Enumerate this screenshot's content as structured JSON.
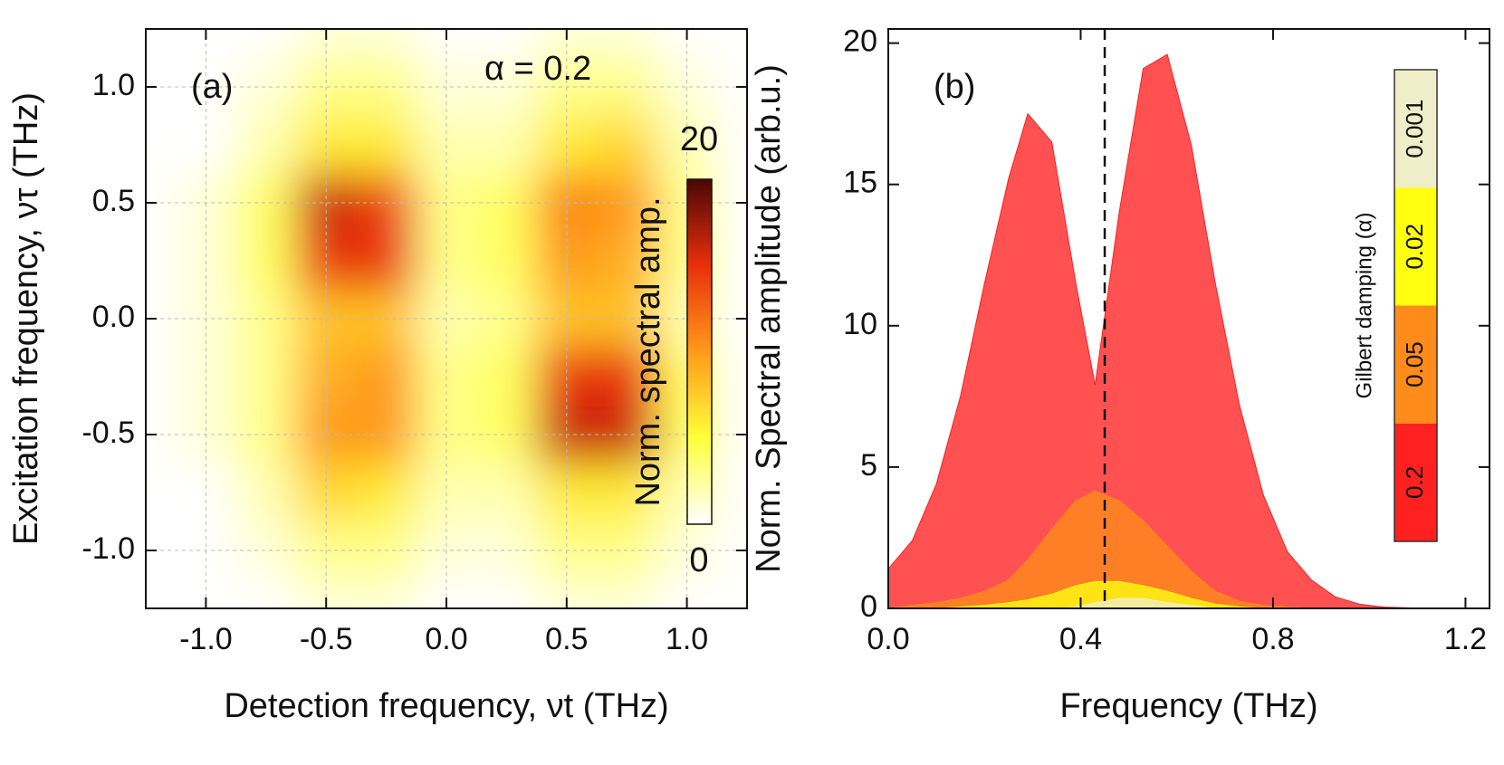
{
  "chart_data": [
    {
      "type": "heatmap",
      "panel_label": "(a)",
      "annotation": "α = 0.2",
      "xlabel": "Detection frequency, νt (THz)",
      "ylabel": "Excitation frequency, ντ (THz)",
      "colorbar_label": "Norm. spectral amp.",
      "zlim": [
        0,
        20
      ],
      "zticks": [
        0,
        20
      ],
      "colorscale": [
        "#ffffff",
        "#ffff3a",
        "#ff9a1a",
        "#e8300c",
        "#4a0606"
      ],
      "x": [
        -1.25,
        -1.0,
        -0.75,
        -0.5,
        -0.25,
        0,
        0.25,
        0.5,
        0.75,
        1.0,
        1.25
      ],
      "y": [
        1.25,
        1.0,
        0.75,
        0.5,
        0.25,
        0,
        -0.25,
        -0.5,
        -0.75,
        -1.0,
        -1.25
      ],
      "z": [
        [
          0,
          0,
          0,
          1,
          1,
          0,
          0,
          1,
          1,
          0,
          0
        ],
        [
          0,
          0,
          1,
          3,
          3,
          1,
          1,
          3,
          3,
          1,
          0
        ],
        [
          0,
          0,
          2,
          6,
          6,
          2,
          2,
          6,
          7,
          2,
          0
        ],
        [
          0,
          1,
          4,
          16,
          14,
          3,
          4,
          11,
          10,
          3,
          0
        ],
        [
          0,
          1,
          4,
          15,
          15,
          3,
          4,
          10,
          9,
          3,
          0
        ],
        [
          0,
          1,
          3,
          8,
          8,
          2,
          3,
          8,
          8,
          2,
          0
        ],
        [
          0,
          1,
          3,
          9,
          10,
          3,
          4,
          15,
          15,
          4,
          0
        ],
        [
          0,
          1,
          3,
          10,
          10,
          3,
          4,
          16,
          16,
          4,
          0
        ],
        [
          0,
          0,
          2,
          7,
          6,
          2,
          2,
          6,
          6,
          2,
          0
        ],
        [
          0,
          0,
          1,
          3,
          3,
          1,
          1,
          3,
          3,
          1,
          0
        ],
        [
          0,
          0,
          0,
          1,
          1,
          0,
          0,
          1,
          1,
          0,
          0
        ]
      ],
      "xlim": [
        -1.25,
        1.25
      ],
      "ylim": [
        -1.25,
        1.25
      ],
      "xticks": [
        {
          "value": -1.0,
          "label": "-1.0"
        },
        {
          "value": -0.5,
          "label": "-0.5"
        },
        {
          "value": 0,
          "label": "0.0"
        },
        {
          "value": 0.5,
          "label": "0.5"
        },
        {
          "value": 1.0,
          "label": "1.0"
        }
      ],
      "yticks": [
        {
          "value": -1.0,
          "label": "-1.0"
        },
        {
          "value": -0.5,
          "label": "-0.5"
        },
        {
          "value": 0,
          "label": "0.0"
        },
        {
          "value": 0.5,
          "label": "0.5"
        },
        {
          "value": 1.0,
          "label": "1.0"
        }
      ],
      "grid": true
    },
    {
      "type": "area",
      "panel_label": "(b)",
      "xlabel": "Frequency (THz)",
      "ylabel": "Norm. Spectral amplitude (arb.u.)",
      "legend_title": "Gilbert damping (α)",
      "vline": 0.45,
      "x": [
        0,
        0.05,
        0.1,
        0.15,
        0.2,
        0.25,
        0.29,
        0.34,
        0.39,
        0.43,
        0.48,
        0.53,
        0.58,
        0.63,
        0.68,
        0.73,
        0.78,
        0.83,
        0.88,
        0.93,
        0.98,
        1.03,
        1.08,
        1.13,
        1.18,
        1.22
      ],
      "series": [
        {
          "name": "0.2",
          "color": "#ff2020",
          "values": [
            1.4,
            2.4,
            4.4,
            7.5,
            11.5,
            15.2,
            17.5,
            16.5,
            11.5,
            7.9,
            14,
            19.1,
            19.6,
            16.4,
            11.5,
            7.2,
            4,
            2,
            1,
            0.4,
            0.15,
            0.05,
            0.02,
            0,
            0,
            0
          ]
        },
        {
          "name": "0.05",
          "color": "#ff8c1a",
          "values": [
            0,
            0.1,
            0.2,
            0.35,
            0.6,
            1.0,
            1.7,
            2.8,
            3.8,
            4.15,
            3.8,
            3.1,
            2.2,
            1.3,
            0.6,
            0.25,
            0.1,
            0.05,
            0,
            0,
            0,
            0,
            0,
            0,
            0,
            0
          ]
        },
        {
          "name": "0.02",
          "color": "#ffff10",
          "values": [
            0,
            0,
            0,
            0.05,
            0.1,
            0.2,
            0.3,
            0.5,
            0.8,
            0.95,
            0.95,
            0.8,
            0.6,
            0.35,
            0.15,
            0.05,
            0,
            0,
            0,
            0,
            0,
            0,
            0,
            0,
            0,
            0
          ]
        },
        {
          "name": "0.001",
          "color": "#f0eec8",
          "values": [
            0,
            0,
            0,
            0,
            0,
            0,
            0,
            0,
            0.05,
            0.2,
            0.35,
            0.35,
            0.2,
            0.1,
            0,
            0,
            0,
            0,
            0,
            0,
            0,
            0,
            0,
            0,
            0,
            0
          ]
        }
      ],
      "xlim": [
        0,
        1.25
      ],
      "ylim": [
        0,
        20.5
      ],
      "xticks": [
        {
          "value": 0,
          "label": "0.0"
        },
        0.4,
        0.8,
        1.2
      ],
      "yticks": [
        0,
        5,
        10,
        15,
        20
      ]
    }
  ]
}
